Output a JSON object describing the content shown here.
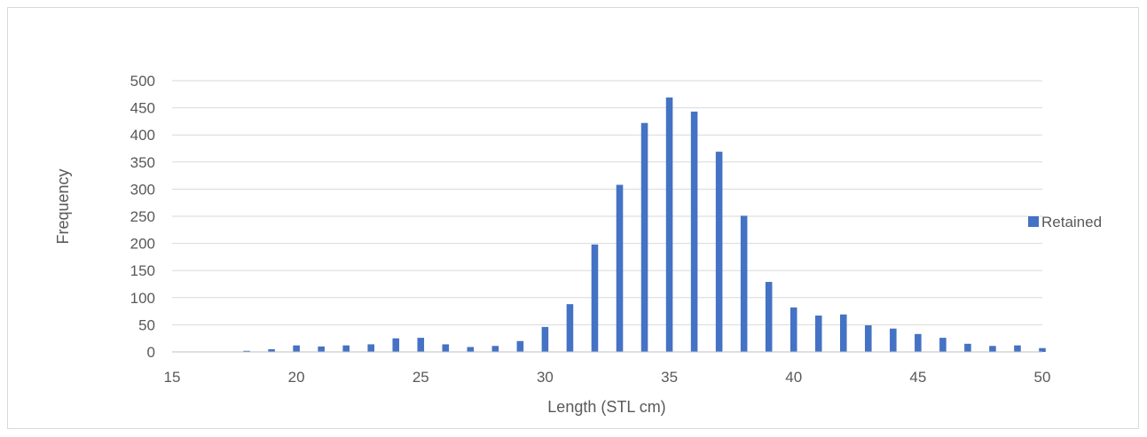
{
  "chart_data": {
    "type": "bar",
    "title": "",
    "xlabel": "Length (STL cm)",
    "ylabel": "Frequency",
    "xlim": [
      15,
      50
    ],
    "ylim": [
      0,
      500
    ],
    "x_ticks": [
      15,
      20,
      25,
      30,
      35,
      40,
      45,
      50
    ],
    "y_ticks": [
      0,
      50,
      100,
      150,
      200,
      250,
      300,
      350,
      400,
      450,
      500
    ],
    "grid": "horizontal",
    "legend_position": "right",
    "bar_color": "#4472c4",
    "series": [
      {
        "name": "Retained",
        "x": [
          18,
          19,
          20,
          21,
          22,
          23,
          24,
          25,
          26,
          27,
          28,
          29,
          30,
          31,
          32,
          33,
          34,
          35,
          36,
          37,
          38,
          39,
          40,
          41,
          42,
          43,
          44,
          45,
          46,
          47,
          48,
          49,
          50
        ],
        "values": [
          2,
          5,
          12,
          10,
          12,
          14,
          25,
          26,
          14,
          9,
          11,
          20,
          46,
          88,
          198,
          308,
          422,
          469,
          443,
          369,
          251,
          129,
          82,
          67,
          69,
          49,
          43,
          33,
          26,
          15,
          11,
          12,
          7
        ]
      }
    ]
  }
}
